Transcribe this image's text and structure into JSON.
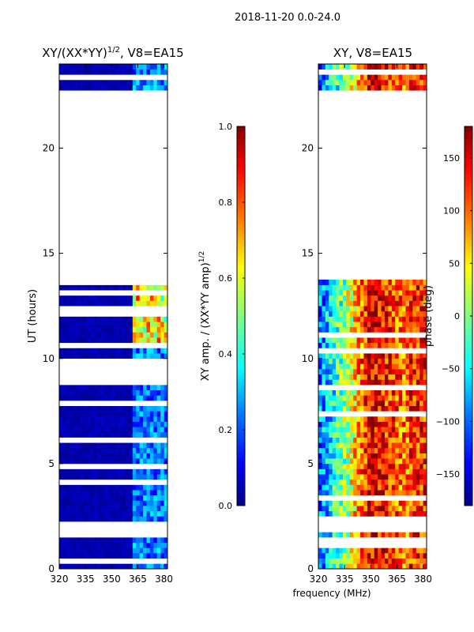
{
  "figure": {
    "suptitle": "2018-11-20 0.0-24.0",
    "xlabel": "frequency (MHz)"
  },
  "colors": {
    "background_grid": "#ffffff",
    "axis": "#000000",
    "jet": [
      "#000080",
      "#0000ff",
      "#0080ff",
      "#00ffff",
      "#80ff80",
      "#ffff00",
      "#ff8000",
      "#ff0000",
      "#800000"
    ]
  },
  "chart_data": [
    {
      "type": "heatmap",
      "title_main": "XY/(XX*YY)",
      "title_sup": "1/2",
      "title_rest": ", V8=EA15",
      "xlabel": "",
      "ylabel": "UT (hours)",
      "xlim": [
        320,
        382
      ],
      "ylim": [
        0,
        24
      ],
      "xticks": [
        320,
        335,
        350,
        365,
        380
      ],
      "xtick_labels": [
        "320",
        "335",
        "350",
        "365",
        "380"
      ],
      "yticks": [
        0,
        5,
        10,
        15,
        20
      ],
      "ytick_labels": [
        "0",
        "5",
        "10",
        "15",
        "20"
      ],
      "data_gaps_hours": [
        [
          13.8,
          21.5
        ],
        [
          21.6,
          22.7
        ]
      ],
      "description_pattern": "low amplitude (dark blue) below ~362 MHz; moderate amplitude 362-380 MHz, peaking ~0.6-0.8 near 11-14 h",
      "colorbar": {
        "label_main": "XY amp. / (XX*YY amp)",
        "label_sup": "1/2",
        "vmin": 0.0,
        "vmax": 1.0,
        "ticks": [
          0.0,
          0.2,
          0.4,
          0.6,
          0.8,
          1.0
        ],
        "tick_labels": [
          "0.0",
          "0.2",
          "0.4",
          "0.6",
          "0.8",
          "1.0"
        ]
      }
    },
    {
      "type": "heatmap",
      "title_main": "XY, V8=EA15",
      "xlabel": "frequency (MHz)",
      "ylabel": "",
      "xlim": [
        320,
        382
      ],
      "ylim": [
        0,
        24
      ],
      "xticks": [
        320,
        335,
        350,
        365,
        380
      ],
      "xtick_labels": [
        "320",
        "335",
        "350",
        "365",
        "380"
      ],
      "yticks": [
        0,
        5,
        10,
        15,
        20
      ],
      "ytick_labels": [
        "0",
        "5",
        "10",
        "15",
        "20"
      ],
      "data_gaps_hours": [
        [
          13.8,
          21.5
        ],
        [
          21.6,
          22.7
        ]
      ],
      "description_pattern": "phase roughly ramps from ~-100 deg at 320 MHz through ~0 near 340 MHz to ~+150 deg near 350-360 MHz, noisy",
      "colorbar": {
        "label_main": "phase (deg)",
        "vmin": -180,
        "vmax": 180,
        "ticks": [
          -150,
          -100,
          -50,
          0,
          50,
          100,
          150
        ],
        "tick_labels": [
          "−150",
          "−100",
          "−50",
          "0",
          "50",
          "100",
          "150"
        ]
      }
    }
  ]
}
